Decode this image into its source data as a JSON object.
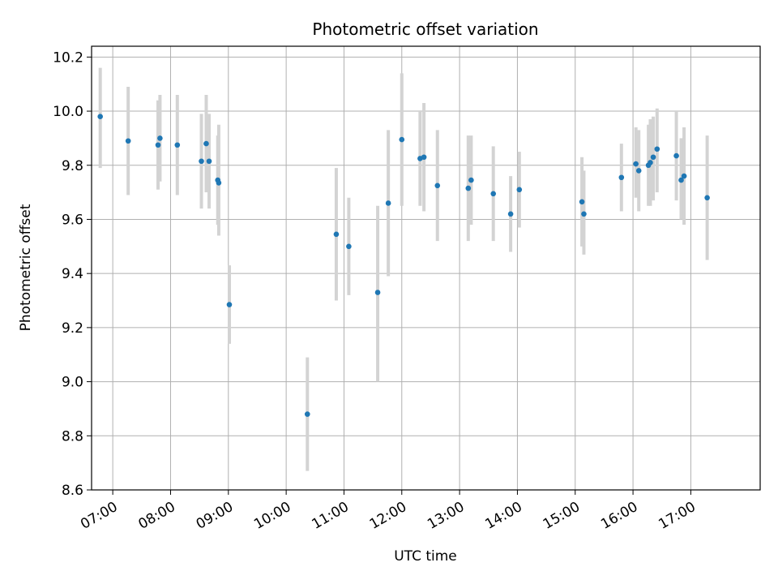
{
  "chart_data": {
    "type": "scatter",
    "title": "Photometric offset variation",
    "xlabel": "UTC time",
    "ylabel": "Photometric offset",
    "xlim": [
      "06:38",
      "18:12"
    ],
    "ylim": [
      8.6,
      10.24
    ],
    "grid": true,
    "x_ticks": [
      "07:00",
      "08:00",
      "09:00",
      "10:00",
      "11:00",
      "12:00",
      "13:00",
      "14:00",
      "15:00",
      "16:00",
      "17:00"
    ],
    "y_ticks": [
      "8.6",
      "8.8",
      "9.0",
      "9.2",
      "9.4",
      "9.6",
      "9.8",
      "10.0",
      "10.2"
    ],
    "colors": {
      "points": "#1f77b4",
      "errorbars": "#d3d3d3",
      "grid": "#b0b0b0"
    },
    "points": [
      {
        "x": "06:47",
        "y": 9.98,
        "lo": 9.79,
        "hi": 10.16
      },
      {
        "x": "07:16",
        "y": 9.89,
        "lo": 9.69,
        "hi": 10.09
      },
      {
        "x": "07:47",
        "y": 9.875,
        "lo": 9.71,
        "hi": 10.04
      },
      {
        "x": "07:49",
        "y": 9.9,
        "lo": 9.74,
        "hi": 10.06
      },
      {
        "x": "08:07",
        "y": 9.875,
        "lo": 9.69,
        "hi": 10.06
      },
      {
        "x": "08:32",
        "y": 9.815,
        "lo": 9.64,
        "hi": 9.99
      },
      {
        "x": "08:37",
        "y": 9.88,
        "lo": 9.7,
        "hi": 10.06
      },
      {
        "x": "08:40",
        "y": 9.815,
        "lo": 9.64,
        "hi": 9.99
      },
      {
        "x": "08:49",
        "y": 9.745,
        "lo": 9.58,
        "hi": 9.91
      },
      {
        "x": "08:50",
        "y": 9.735,
        "lo": 9.54,
        "hi": 9.95
      },
      {
        "x": "09:01",
        "y": 9.285,
        "lo": 9.14,
        "hi": 9.43
      },
      {
        "x": "10:22",
        "y": 8.88,
        "lo": 8.67,
        "hi": 9.09
      },
      {
        "x": "10:52",
        "y": 9.545,
        "lo": 9.3,
        "hi": 9.79
      },
      {
        "x": "11:05",
        "y": 9.5,
        "lo": 9.32,
        "hi": 9.68
      },
      {
        "x": "11:35",
        "y": 9.33,
        "lo": 9.0,
        "hi": 9.65
      },
      {
        "x": "11:46",
        "y": 9.66,
        "lo": 9.39,
        "hi": 9.93
      },
      {
        "x": "12:00",
        "y": 9.895,
        "lo": 9.65,
        "hi": 10.14
      },
      {
        "x": "12:19",
        "y": 9.825,
        "lo": 9.65,
        "hi": 10.0
      },
      {
        "x": "12:23",
        "y": 9.83,
        "lo": 9.63,
        "hi": 10.03
      },
      {
        "x": "12:37",
        "y": 9.725,
        "lo": 9.52,
        "hi": 9.93
      },
      {
        "x": "13:09",
        "y": 9.715,
        "lo": 9.52,
        "hi": 9.91
      },
      {
        "x": "13:12",
        "y": 9.745,
        "lo": 9.58,
        "hi": 9.91
      },
      {
        "x": "13:35",
        "y": 9.695,
        "lo": 9.52,
        "hi": 9.87
      },
      {
        "x": "13:53",
        "y": 9.62,
        "lo": 9.48,
        "hi": 9.76
      },
      {
        "x": "14:02",
        "y": 9.71,
        "lo": 9.57,
        "hi": 9.85
      },
      {
        "x": "15:07",
        "y": 9.665,
        "lo": 9.5,
        "hi": 9.83
      },
      {
        "x": "15:09",
        "y": 9.62,
        "lo": 9.47,
        "hi": 9.78
      },
      {
        "x": "15:48",
        "y": 9.755,
        "lo": 9.63,
        "hi": 9.88
      },
      {
        "x": "16:03",
        "y": 9.805,
        "lo": 9.68,
        "hi": 9.94
      },
      {
        "x": "16:06",
        "y": 9.78,
        "lo": 9.63,
        "hi": 9.93
      },
      {
        "x": "16:16",
        "y": 9.8,
        "lo": 9.65,
        "hi": 9.95
      },
      {
        "x": "16:18",
        "y": 9.81,
        "lo": 9.65,
        "hi": 9.97
      },
      {
        "x": "16:21",
        "y": 9.83,
        "lo": 9.67,
        "hi": 9.98
      },
      {
        "x": "16:25",
        "y": 9.86,
        "lo": 9.7,
        "hi": 10.01
      },
      {
        "x": "16:45",
        "y": 9.835,
        "lo": 9.67,
        "hi": 10.0
      },
      {
        "x": "16:50",
        "y": 9.745,
        "lo": 9.6,
        "hi": 9.9
      },
      {
        "x": "16:53",
        "y": 9.76,
        "lo": 9.58,
        "hi": 9.94
      },
      {
        "x": "17:17",
        "y": 9.68,
        "lo": 9.45,
        "hi": 9.91
      }
    ]
  }
}
